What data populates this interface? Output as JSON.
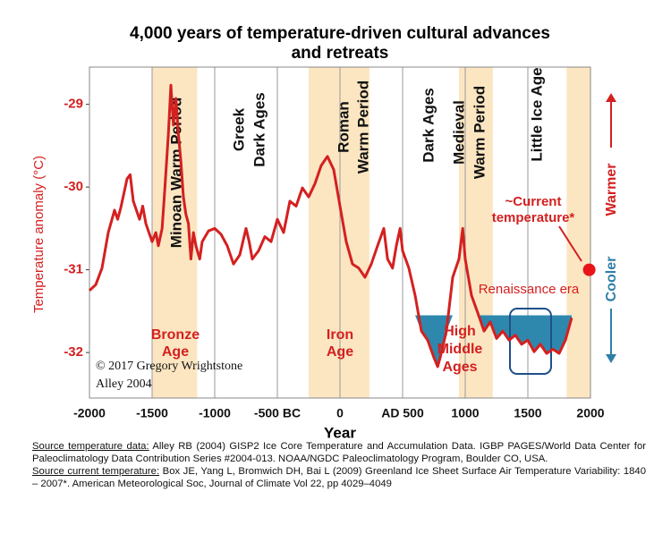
{
  "chart_data": {
    "type": "line",
    "title": [
      "4,000 years of temperature-driven cultural advances",
      "and retreats"
    ],
    "x_label": "Year",
    "y_label": "Temperature anomaly (°C)",
    "xlim": [
      -2000,
      2000
    ],
    "xticks": [
      -2000,
      -1500,
      -1000,
      {
        "value": -500,
        "label": "-500 BC"
      },
      0,
      {
        "value": 500,
        "label": "AD 500"
      },
      1000,
      1500,
      2000
    ],
    "ylim": [
      -32.55,
      -28.55
    ],
    "yticks": [
      -29,
      -30,
      -31,
      -32
    ],
    "grid": "x",
    "color": "#d42020",
    "x": [
      -2000,
      -1950,
      -1900,
      -1850,
      -1800,
      -1775,
      -1750,
      -1700,
      -1675,
      -1650,
      -1600,
      -1575,
      -1550,
      -1500,
      -1470,
      -1450,
      -1420,
      -1400,
      -1370,
      -1350,
      -1330,
      -1310,
      -1290,
      -1270,
      -1250,
      -1230,
      -1210,
      -1190,
      -1170,
      -1150,
      -1120,
      -1100,
      -1050,
      -1000,
      -950,
      -900,
      -850,
      -800,
      -750,
      -725,
      -700,
      -650,
      -600,
      -550,
      -500,
      -450,
      -400,
      -350,
      -300,
      -250,
      -200,
      -150,
      -100,
      -50,
      0,
      50,
      100,
      150,
      200,
      250,
      300,
      350,
      380,
      420,
      450,
      480,
      500,
      550,
      600,
      650,
      700,
      750,
      780,
      800,
      850,
      900,
      950,
      980,
      1000,
      1050,
      1100,
      1150,
      1200,
      1250,
      1300,
      1350,
      1400,
      1450,
      1500,
      1550,
      1600,
      1650,
      1700,
      1750,
      1800,
      1850
    ],
    "values": [
      -31.25,
      -31.18,
      -30.98,
      -30.55,
      -30.28,
      -30.39,
      -30.25,
      -29.9,
      -29.85,
      -30.17,
      -30.39,
      -30.23,
      -30.44,
      -30.66,
      -30.55,
      -30.71,
      -30.5,
      -30.06,
      -29.36,
      -28.77,
      -29.25,
      -28.93,
      -29.36,
      -29.69,
      -30.12,
      -30.33,
      -30.44,
      -30.87,
      -30.55,
      -30.71,
      -30.87,
      -30.66,
      -30.53,
      -30.5,
      -30.57,
      -30.71,
      -30.93,
      -30.82,
      -30.5,
      -30.66,
      -30.87,
      -30.77,
      -30.6,
      -30.66,
      -30.39,
      -30.55,
      -30.17,
      -30.23,
      -30.01,
      -30.12,
      -29.96,
      -29.74,
      -29.63,
      -29.79,
      -30.23,
      -30.66,
      -30.93,
      -30.98,
      -31.09,
      -30.93,
      -30.71,
      -30.5,
      -30.87,
      -30.98,
      -30.71,
      -30.5,
      -30.77,
      -30.98,
      -31.31,
      -31.74,
      -31.85,
      -32.06,
      -32.17,
      -32.06,
      -31.74,
      -31.09,
      -30.87,
      -30.5,
      -30.87,
      -31.31,
      -31.52,
      -31.74,
      -31.63,
      -31.83,
      -31.74,
      -31.85,
      -31.79,
      -31.9,
      -31.85,
      -31.99,
      -31.9,
      -32.01,
      -31.96,
      -32.01,
      -31.85,
      -31.58
    ],
    "highlight_spans": [
      [
        -1500,
        -1140
      ],
      [
        -250,
        235
      ],
      [
        950,
        1220
      ],
      [
        1810,
        2000
      ]
    ],
    "highlight_color": "#fce6c2",
    "cold_fill": {
      "threshold": -31.55,
      "color": "#2e88ad"
    },
    "current_temperature": {
      "x": 1990,
      "value": -31.0,
      "color": "#e8141a"
    },
    "annotations": {
      "minoan": "Minoan  Warm Period",
      "greek": [
        "Greek",
        "Dark Ages"
      ],
      "roman": [
        "Roman",
        "Warm Period"
      ],
      "dark_ages": "Dark Ages",
      "medieval": [
        "Medieval",
        "Warm Period"
      ],
      "little_ice_age": "Little Ice Age",
      "bronze_age": [
        "Bronze",
        "Age"
      ],
      "iron_age": [
        "Iron",
        "Age"
      ],
      "high_middle_ages": [
        "High",
        "Middle",
        "Ages"
      ],
      "current": [
        "~Current",
        "temperature*"
      ],
      "renaissance": "Renaissance era",
      "credit": [
        "© 2017 Gregory Wrightstone",
        "Alley 2004"
      ],
      "warmer": "Warmer",
      "cooler": "Cooler"
    }
  },
  "sources": [
    {
      "label": "Source temperature data:",
      "text": " Alley RB (2004) GISP2 Ice Core Temperature and Accumulation Data. IGBP PAGES/World Data Center for Paleoclimatology Data Contribution Series #2004-013. NOAA/NGDC Paleoclimatology Program, Boulder CO, USA."
    },
    {
      "label": "Source current temperature:",
      "text": " Box JE, Yang L, Bromwich DH, Bai L (2009) Greenland Ice Sheet Surface Air Temperature Variability: 1840 – 2007*. American Meteorological Soc, Journal of Climate Vol 22, pp 4029–4049"
    }
  ]
}
